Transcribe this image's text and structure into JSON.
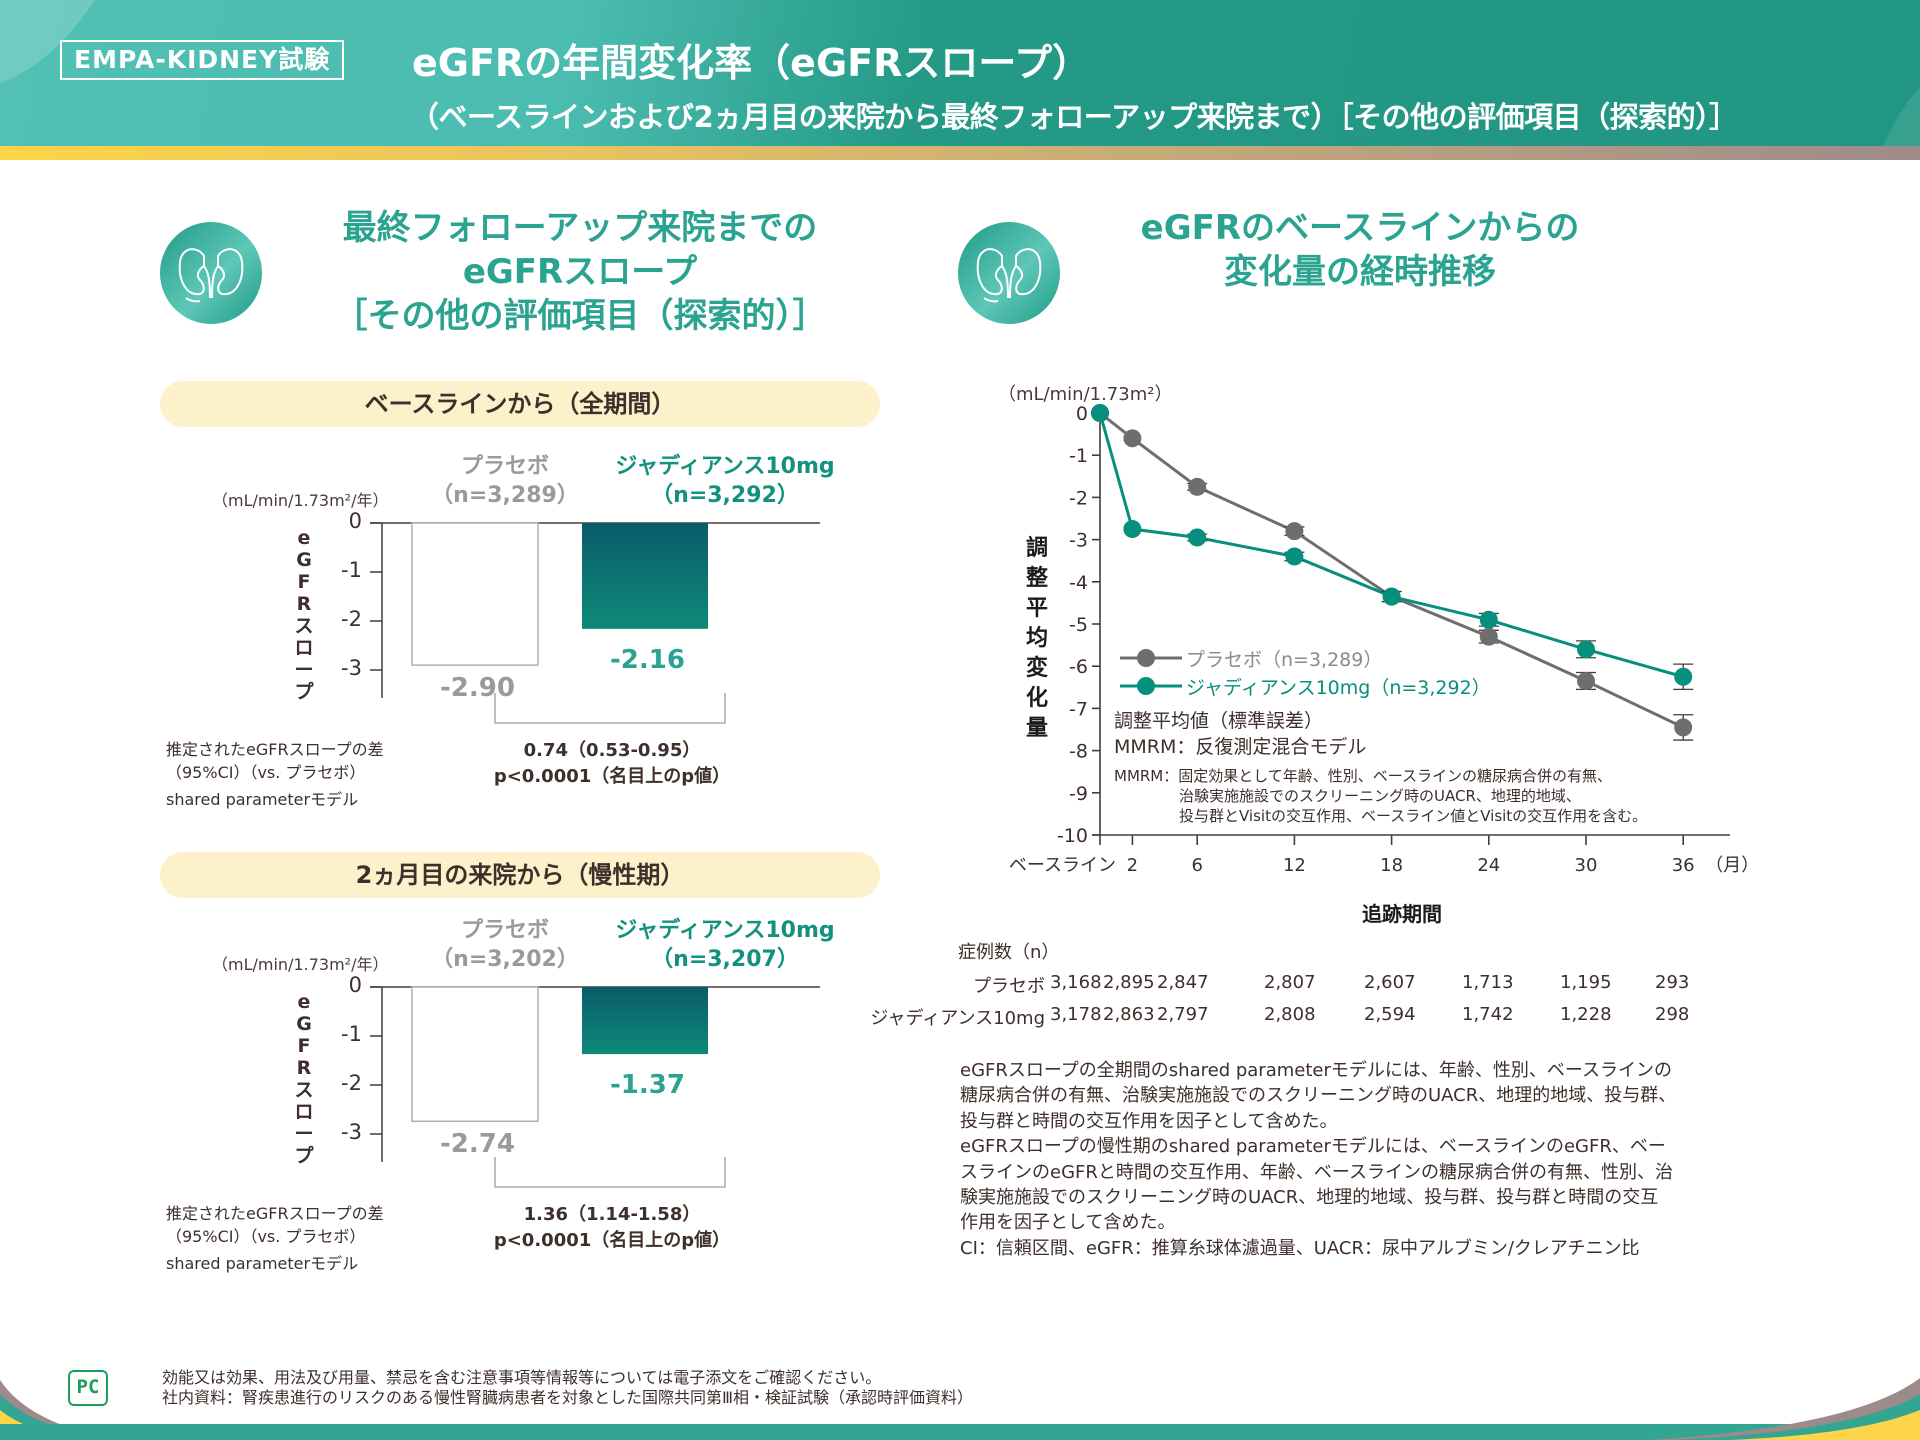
{
  "header": {
    "study_badge": "EMPA-KIDNEY試験",
    "title": "eGFRの年間変化率（eGFRスロープ）",
    "subtitle": "（ベースラインおよび2ヵ月目の来院から最終フォローアップ来院まで）［その他の評価項目（探索的）］"
  },
  "left_section": {
    "icon": "kidney-icon",
    "title_lines": [
      "最終フォローアップ来院までの",
      "eGFRスロープ",
      "［その他の評価項目（探索的）］"
    ],
    "panels": [
      {
        "pill_label": "ベースラインから（全期間）",
        "unit": "（mL/min/1.73m²/年）",
        "y_axis_label": [
          "e",
          "G",
          "F",
          "R",
          "ス",
          "ロ",
          "ー",
          "プ"
        ],
        "placebo_label": "プラセボ",
        "placebo_n": "（n=3,289）",
        "jardiance_label": "ジャディアンス10mg",
        "jardiance_n": "（n=3,292）",
        "placebo_value_text": "-2.90",
        "jardiance_value_text": "-2.16",
        "notes": [
          "推定されたeGFRスロープの差",
          "（95%CI）（vs. プラセボ）",
          "shared parameterモデル"
        ],
        "diff_line1": "0.74（0.53-0.95）",
        "diff_line2": "p<0.0001（名目上のp値）"
      },
      {
        "pill_label": "2ヵ月目の来院から（慢性期）",
        "unit": "（mL/min/1.73m²/年）",
        "y_axis_label": [
          "e",
          "G",
          "F",
          "R",
          "ス",
          "ロ",
          "ー",
          "プ"
        ],
        "placebo_label": "プラセボ",
        "placebo_n": "（n=3,202）",
        "jardiance_label": "ジャディアンス10mg",
        "jardiance_n": "（n=3,207）",
        "placebo_value_text": "-2.74",
        "jardiance_value_text": "-1.37",
        "notes": [
          "推定されたeGFRスロープの差",
          "（95%CI）（vs. プラセボ）",
          "shared parameterモデル"
        ],
        "diff_line1": "1.36（1.14-1.58）",
        "diff_line2": "p<0.0001（名目上のp値）"
      }
    ]
  },
  "right_section": {
    "icon": "kidney-icon",
    "title_lines": [
      "eGFRのベースラインからの",
      "変化量の経時推移"
    ],
    "unit": "（mL/min/1.73m²）",
    "y_axis_label": [
      "調",
      "整",
      "平",
      "均",
      "変",
      "化",
      "量"
    ],
    "x_axis_title": "追跡期間",
    "x_unit": "（月）",
    "legend": [
      {
        "label": "プラセボ（n=3,289）",
        "color": "#6e6e6e"
      },
      {
        "label": "ジャディアンス10mg（n=3,292）",
        "color": "#058f7c"
      }
    ],
    "notes": [
      "調整平均値（標準誤差）",
      "MMRM：反復測定混合モデル"
    ],
    "mmrm_note_lines": [
      "MMRM：固定効果として年齢、性別、ベースラインの糖尿病合併の有無、",
      "治験実施施設でのスクリーニング時のUACR、地理的地域、",
      "投与群とVisitの交互作用、ベースライン値とVisitの交互作用を含む。"
    ],
    "n_table": {
      "title": "症例数（n）",
      "rows": [
        {
          "group": "プラセボ",
          "values": [
            "3,168",
            "2,895",
            "2,847",
            "2,807",
            "2,607",
            "1,713",
            "1,195",
            "293"
          ]
        },
        {
          "group": "ジャディアンス10mg",
          "values": [
            "3,178",
            "2,863",
            "2,797",
            "2,808",
            "2,594",
            "1,742",
            "1,228",
            "298"
          ]
        }
      ]
    },
    "footnotes": [
      "eGFRスロープの全期間のshared parameterモデルには、年齢、性別、ベースラインの",
      "糖尿病合併の有無、治験実施施設でのスクリーニング時のUACR、地理的地域、投与群、",
      "投与群と時間の交互作用を因子として含めた。",
      "eGFRスロープの慢性期のshared parameterモデルには、ベースラインのeGFR、ベー",
      "スラインのeGFRと時間の交互作用、年齢、ベースラインの糖尿病合併の有無、性別、治",
      "験実施施設でのスクリーニング時のUACR、地理的地域、投与群、投与群と時間の交互",
      "作用を因子として含めた。",
      "CI：信頼区間、eGFR：推算糸球体濾過量、UACR：尿中アルブミン/クレアチニン比"
    ]
  },
  "footer": {
    "logo": "PC",
    "lines": [
      "効能又は効果、用法及び用量、禁忌を含む注意事項等情報等については電子添文をご確認ください。",
      "社内資料：腎疾患進行のリスクのある慢性腎臓病患者を対象とした国際共同第Ⅲ相・検証試験（承認時評価資料）"
    ]
  },
  "chart_data": [
    {
      "type": "bar",
      "title": "ベースラインから（全期間）",
      "ylabel": "eGFRスロープ (mL/min/1.73m²/年)",
      "categories": [
        "プラセボ",
        "ジャディアンス10mg"
      ],
      "values": [
        -2.9,
        -2.16
      ],
      "ylim": [
        -3.5,
        0
      ],
      "yticks": [
        0,
        -1,
        -2,
        -3
      ],
      "colors": [
        "#ffffff",
        "#0d7a72"
      ]
    },
    {
      "type": "bar",
      "title": "2ヵ月目の来院から（慢性期）",
      "ylabel": "eGFRスロープ (mL/min/1.73m²/年)",
      "categories": [
        "プラセボ",
        "ジャディアンス10mg"
      ],
      "values": [
        -2.74,
        -1.37
      ],
      "ylim": [
        -3.5,
        0
      ],
      "yticks": [
        0,
        -1,
        -2,
        -3
      ],
      "colors": [
        "#ffffff",
        "#0d7a72"
      ]
    },
    {
      "type": "line",
      "title": "eGFRのベースラインからの変化量の経時推移",
      "xlabel": "追跡期間（月）",
      "ylabel": "調整平均変化量 (mL/min/1.73m²)",
      "x": [
        0,
        2,
        6,
        12,
        18,
        24,
        30,
        36
      ],
      "x_tick_labels": [
        "ベースライン",
        "2",
        "6",
        "12",
        "18",
        "24",
        "30",
        "36"
      ],
      "ylim": [
        -10,
        0
      ],
      "yticks": [
        0,
        -1,
        -2,
        -3,
        -4,
        -5,
        -6,
        -7,
        -8,
        -9,
        -10
      ],
      "legend_position": "lower-left",
      "series": [
        {
          "name": "プラセボ（n=3,289）",
          "color": "#6e6e6e",
          "values": [
            0,
            -0.6,
            -1.75,
            -2.8,
            -4.35,
            -5.3,
            -6.35,
            -7.45
          ],
          "error": [
            0,
            0.05,
            0.08,
            0.1,
            0.12,
            0.15,
            0.2,
            0.3
          ]
        },
        {
          "name": "ジャディアンス10mg（n=3,292）",
          "color": "#058f7c",
          "values": [
            0,
            -2.75,
            -2.95,
            -3.4,
            -4.35,
            -4.9,
            -5.6,
            -6.25
          ],
          "error": [
            0,
            0.05,
            0.08,
            0.1,
            0.12,
            0.15,
            0.2,
            0.3
          ]
        }
      ]
    }
  ]
}
